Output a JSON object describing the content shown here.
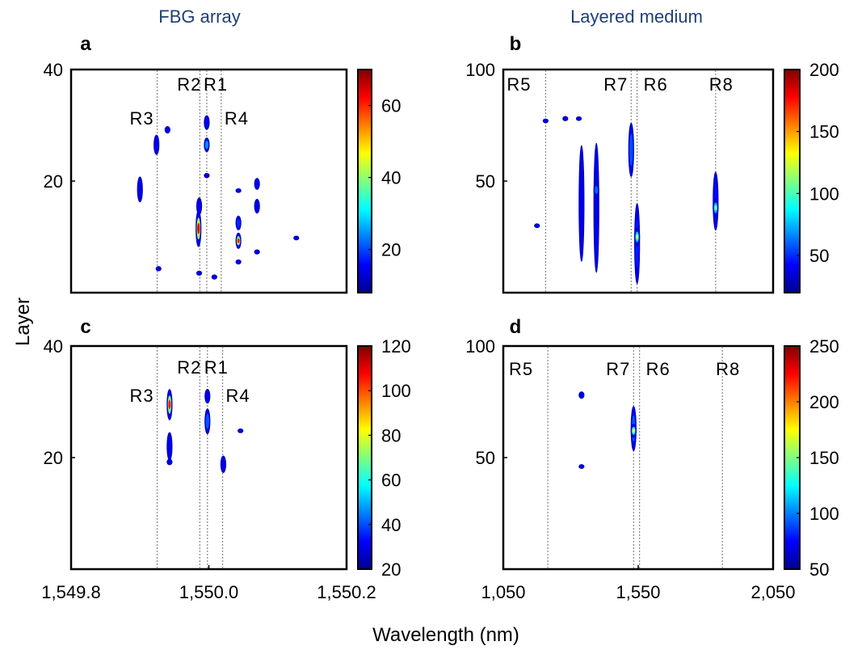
{
  "figure": {
    "column_titles": [
      "FBG array",
      "Layered medium"
    ],
    "ylabel": "Layer",
    "xlabel": "Wavelength (nm)"
  },
  "chart_data": [
    {
      "type": "heatmap",
      "panel": "a",
      "column": "FBG array",
      "xlim": [
        1549.8,
        1550.2
      ],
      "ylim": [
        0,
        40
      ],
      "x_tick_labels": [],
      "y_ticks": [
        {
          "value": 20,
          "label": "20"
        },
        {
          "value": 40,
          "label": "40"
        }
      ],
      "colorbar": {
        "range": [
          8,
          70
        ],
        "ticks": [
          {
            "value": 20,
            "label": "20"
          },
          {
            "value": 40,
            "label": "40"
          },
          {
            "value": 60,
            "label": "60"
          }
        ]
      },
      "reference_lines": [
        {
          "name": "R3",
          "x": 1549.925
        },
        {
          "name": "R2",
          "x": 1549.987
        },
        {
          "name": "R1",
          "x": 1549.997
        },
        {
          "name": "R4",
          "x": 1550.018
        }
      ],
      "blobs": [
        {
          "x": 1549.9,
          "y": 18.5,
          "h": 4.5,
          "v": 12
        },
        {
          "x": 1549.924,
          "y": 26.5,
          "h": 3.5,
          "v": 16
        },
        {
          "x": 1549.94,
          "y": 29.2,
          "h": 1.2,
          "v": 10
        },
        {
          "x": 1549.927,
          "y": 4.3,
          "h": 0.8,
          "v": 12
        },
        {
          "x": 1549.985,
          "y": 11.5,
          "h": 6.5,
          "v": 65
        },
        {
          "x": 1549.986,
          "y": 15.5,
          "h": 3.0,
          "v": 14
        },
        {
          "x": 1549.986,
          "y": 3.5,
          "h": 0.8,
          "v": 10
        },
        {
          "x": 1549.997,
          "y": 30.5,
          "h": 2.5,
          "v": 18
        },
        {
          "x": 1549.997,
          "y": 26.5,
          "h": 2.5,
          "v": 35
        },
        {
          "x": 1549.997,
          "y": 21.0,
          "h": 0.8,
          "v": 10
        },
        {
          "x": 1550.008,
          "y": 2.8,
          "h": 0.8,
          "v": 10
        },
        {
          "x": 1550.043,
          "y": 12.5,
          "h": 2.5,
          "v": 25
        },
        {
          "x": 1550.043,
          "y": 9.3,
          "h": 2.8,
          "v": 60
        },
        {
          "x": 1550.043,
          "y": 5.5,
          "h": 0.8,
          "v": 12
        },
        {
          "x": 1550.043,
          "y": 18.3,
          "h": 0.4,
          "v": 10
        },
        {
          "x": 1550.07,
          "y": 19.5,
          "h": 2.0,
          "v": 16
        },
        {
          "x": 1550.07,
          "y": 15.5,
          "h": 2.5,
          "v": 14
        },
        {
          "x": 1550.07,
          "y": 7.3,
          "h": 0.8,
          "v": 10
        },
        {
          "x": 1550.127,
          "y": 9.8,
          "h": 0.5,
          "v": 10
        }
      ]
    },
    {
      "type": "heatmap",
      "panel": "b",
      "column": "Layered medium",
      "xlim": [
        1050,
        2050
      ],
      "ylim": [
        0,
        100
      ],
      "x_tick_labels": [],
      "y_ticks": [
        {
          "value": 50,
          "label": "50"
        },
        {
          "value": 100,
          "label": "100"
        }
      ],
      "colorbar": {
        "range": [
          20,
          200
        ],
        "ticks": [
          {
            "value": 50,
            "label": "50"
          },
          {
            "value": 100,
            "label": "100"
          },
          {
            "value": 150,
            "label": "150"
          },
          {
            "value": 200,
            "label": "200"
          }
        ]
      },
      "reference_lines": [
        {
          "name": "R5",
          "x": 1207
        },
        {
          "name": "R7",
          "x": 1524
        },
        {
          "name": "R6",
          "x": 1546
        },
        {
          "name": "R8",
          "x": 1837
        }
      ],
      "blobs": [
        {
          "x": 1175,
          "y": 30,
          "h": 1.2,
          "v": 22
        },
        {
          "x": 1207,
          "y": 77,
          "h": 0.8,
          "v": 22
        },
        {
          "x": 1280,
          "y": 78,
          "h": 2.0,
          "v": 30
        },
        {
          "x": 1330,
          "y": 78,
          "h": 0.8,
          "v": 22
        },
        {
          "x": 1340,
          "y": 40,
          "h": 52,
          "v": 40
        },
        {
          "x": 1395,
          "y": 38,
          "h": 58,
          "v": 55
        },
        {
          "x": 1395,
          "y": 46,
          "h": 6,
          "v": 85
        },
        {
          "x": 1524,
          "y": 64,
          "h": 24,
          "v": 80
        },
        {
          "x": 1546,
          "y": 22,
          "h": 36,
          "v": 65
        },
        {
          "x": 1546,
          "y": 25,
          "h": 8,
          "v": 120
        },
        {
          "x": 1837,
          "y": 41,
          "h": 26,
          "v": 60
        },
        {
          "x": 1837,
          "y": 38,
          "h": 8,
          "v": 110
        }
      ]
    },
    {
      "type": "heatmap",
      "panel": "c",
      "column": "FBG array",
      "xlim": [
        1549.8,
        1550.2
      ],
      "ylim": [
        0,
        40
      ],
      "x_tick_labels": [
        {
          "value": 1549.8,
          "label": "1,549.8"
        },
        {
          "value": 1550.0,
          "label": "1,550.0"
        },
        {
          "value": 1550.2,
          "label": "1,550.2"
        }
      ],
      "y_ticks": [
        {
          "value": 20,
          "label": "20"
        },
        {
          "value": 40,
          "label": "40"
        }
      ],
      "colorbar": {
        "range": [
          20,
          120
        ],
        "ticks": [
          {
            "value": 20,
            "label": "20"
          },
          {
            "value": 40,
            "label": "40"
          },
          {
            "value": 60,
            "label": "60"
          },
          {
            "value": 80,
            "label": "80"
          },
          {
            "value": 100,
            "label": "100"
          },
          {
            "value": 120,
            "label": "120"
          }
        ]
      },
      "reference_lines": [
        {
          "name": "R3",
          "x": 1549.925
        },
        {
          "name": "R2",
          "x": 1549.987
        },
        {
          "name": "R1",
          "x": 1549.998
        },
        {
          "name": "R4",
          "x": 1550.02
        }
      ],
      "blobs": [
        {
          "x": 1549.943,
          "y": 29.5,
          "h": 5.5,
          "v": 105
        },
        {
          "x": 1549.943,
          "y": 22.0,
          "h": 5.0,
          "v": 28
        },
        {
          "x": 1549.943,
          "y": 19.2,
          "h": 1.0,
          "v": 24
        },
        {
          "x": 1549.998,
          "y": 31.0,
          "h": 2.5,
          "v": 28
        },
        {
          "x": 1549.998,
          "y": 26.5,
          "h": 4.5,
          "v": 55
        },
        {
          "x": 1550.021,
          "y": 18.8,
          "h": 3.0,
          "v": 26
        },
        {
          "x": 1550.046,
          "y": 24.8,
          "h": 0.6,
          "v": 24
        }
      ]
    },
    {
      "type": "heatmap",
      "panel": "d",
      "column": "Layered medium",
      "xlim": [
        1050,
        2050
      ],
      "ylim": [
        0,
        100
      ],
      "x_tick_labels": [
        {
          "value": 1050,
          "label": "1,050"
        },
        {
          "value": 1550,
          "label": "1,550"
        },
        {
          "value": 2050,
          "label": "2,050"
        }
      ],
      "y_ticks": [
        {
          "value": 50,
          "label": "50"
        },
        {
          "value": 100,
          "label": "100"
        }
      ],
      "colorbar": {
        "range": [
          50,
          250
        ],
        "ticks": [
          {
            "value": 50,
            "label": "50"
          },
          {
            "value": 100,
            "label": "100"
          },
          {
            "value": 150,
            "label": "150"
          },
          {
            "value": 200,
            "label": "200"
          },
          {
            "value": 250,
            "label": "250"
          }
        ]
      },
      "reference_lines": [
        {
          "name": "R5",
          "x": 1215
        },
        {
          "name": "R7",
          "x": 1533
        },
        {
          "name": "R6",
          "x": 1555
        },
        {
          "name": "R8",
          "x": 1862
        }
      ],
      "blobs": [
        {
          "x": 1340,
          "y": 78,
          "h": 3.0,
          "v": 60
        },
        {
          "x": 1340,
          "y": 46,
          "h": 0.8,
          "v": 55
        },
        {
          "x": 1533,
          "y": 63,
          "h": 20,
          "v": 120
        },
        {
          "x": 1533,
          "y": 62,
          "h": 6,
          "v": 175
        }
      ]
    }
  ]
}
